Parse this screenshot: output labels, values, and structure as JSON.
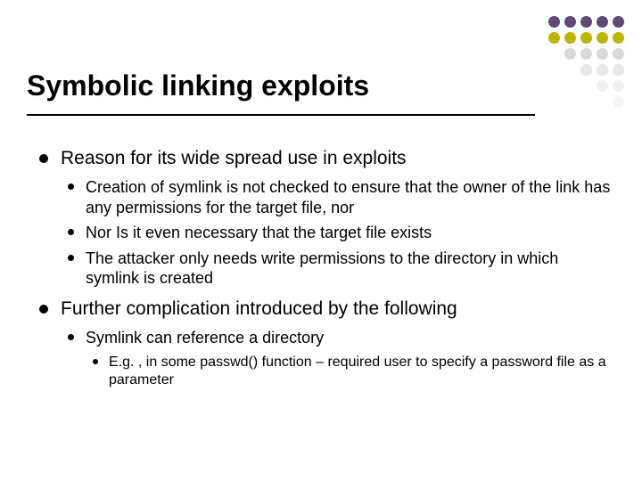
{
  "title": "Symbolic linking exploits",
  "dot_grid": {
    "cell_size": 13,
    "gap": 5,
    "rows": [
      [
        "#604878",
        "#604878",
        "#604878",
        "#604878",
        "#604878"
      ],
      [
        "#bfb400",
        "#bfb400",
        "#bfb400",
        "#bfb400",
        "#bfb400"
      ],
      [
        "#ffffff",
        "#d9d9d9",
        "#d9d9d9",
        "#d9d9d9",
        "#d9d9d9"
      ],
      [
        "#ffffff",
        "#ffffff",
        "#e8e8e8",
        "#e8e8e8",
        "#e8e8e8"
      ],
      [
        "#ffffff",
        "#ffffff",
        "#ffffff",
        "#f0f0f0",
        "#f0f0f0"
      ],
      [
        "#ffffff",
        "#ffffff",
        "#ffffff",
        "#ffffff",
        "#f5f5f5"
      ]
    ]
  },
  "bullets": [
    {
      "text": "Reason for its wide spread use in exploits",
      "children": [
        {
          "text": "Creation of symlink is not checked to ensure that the owner of the link has any permissions for the target file, nor"
        },
        {
          "text": "Nor Is it even necessary that the target file exists"
        },
        {
          "text": "The attacker only needs write permissions to the directory in which symlink is created"
        }
      ]
    },
    {
      "text": "Further complication introduced by the following",
      "children": [
        {
          "text": "Symlink can reference a directory",
          "children": [
            {
              "text": "E.g. , in some passwd() function – required user to specify a password file as a parameter"
            }
          ]
        }
      ]
    }
  ],
  "colors": {
    "background": "#ffffff",
    "text": "#000000",
    "rule": "#000000"
  },
  "font_sizes": {
    "title": 32,
    "lvl0": 21,
    "lvl1": 18,
    "lvl2": 16
  }
}
